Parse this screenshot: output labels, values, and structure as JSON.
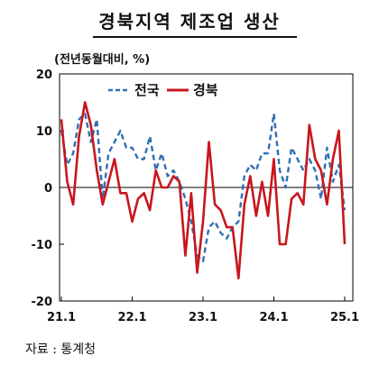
{
  "title": "경북지역 제조업 생산",
  "unit_label": "(전년동월대비, %)",
  "source": "자료 : 통계청",
  "chart_data": {
    "type": "line",
    "ylim": [
      -20,
      20
    ],
    "yticks": [
      "20",
      "10",
      "0",
      "-10",
      "-20"
    ],
    "xticks": [
      "21.1",
      "22.1",
      "23.1",
      "24.1",
      "25.1"
    ],
    "legend_position": "top-left",
    "zero_line": true,
    "x": [
      "21.1",
      "21.2",
      "21.3",
      "21.4",
      "21.5",
      "21.6",
      "21.7",
      "21.8",
      "21.9",
      "21.10",
      "21.11",
      "21.12",
      "22.1",
      "22.2",
      "22.3",
      "22.4",
      "22.5",
      "22.6",
      "22.7",
      "22.8",
      "22.9",
      "22.10",
      "22.11",
      "22.12",
      "23.1",
      "23.2",
      "23.3",
      "23.4",
      "23.5",
      "23.6",
      "23.7",
      "23.8",
      "23.9",
      "23.10",
      "23.11",
      "23.12",
      "24.1",
      "24.2",
      "24.3",
      "24.4",
      "24.5",
      "24.6",
      "24.7",
      "24.8",
      "24.9",
      "24.10",
      "24.11",
      "24.12",
      "25.1"
    ],
    "series": [
      {
        "name": "전국",
        "color": "#2f6fb5",
        "dash": true,
        "values": [
          10,
          4,
          6,
          12,
          13,
          8,
          12,
          -2,
          6,
          8,
          10,
          7,
          7,
          5,
          5,
          9,
          3,
          6,
          2,
          3,
          1,
          -2,
          -6,
          -12,
          -13,
          -7,
          -6,
          -8,
          -9,
          -7,
          -6,
          2,
          4,
          3,
          6,
          6,
          13,
          3,
          0,
          7,
          5,
          3,
          5,
          3,
          -2,
          7,
          1,
          4,
          -4
        ]
      },
      {
        "name": "경북",
        "color": "#c8161e",
        "dash": false,
        "values": [
          12,
          1,
          -3,
          9,
          15,
          11,
          3,
          -3,
          1,
          5,
          -1,
          -1,
          -6,
          -2,
          -1,
          -4,
          3,
          0,
          0,
          2,
          1,
          -12,
          -1,
          -15,
          -6,
          8,
          -3,
          -4,
          -7,
          -7,
          -16,
          -3,
          2,
          -5,
          1,
          -5,
          5,
          -10,
          -10,
          -2,
          -1,
          -3,
          11,
          5,
          3,
          -3,
          5,
          10,
          -10
        ]
      }
    ]
  }
}
